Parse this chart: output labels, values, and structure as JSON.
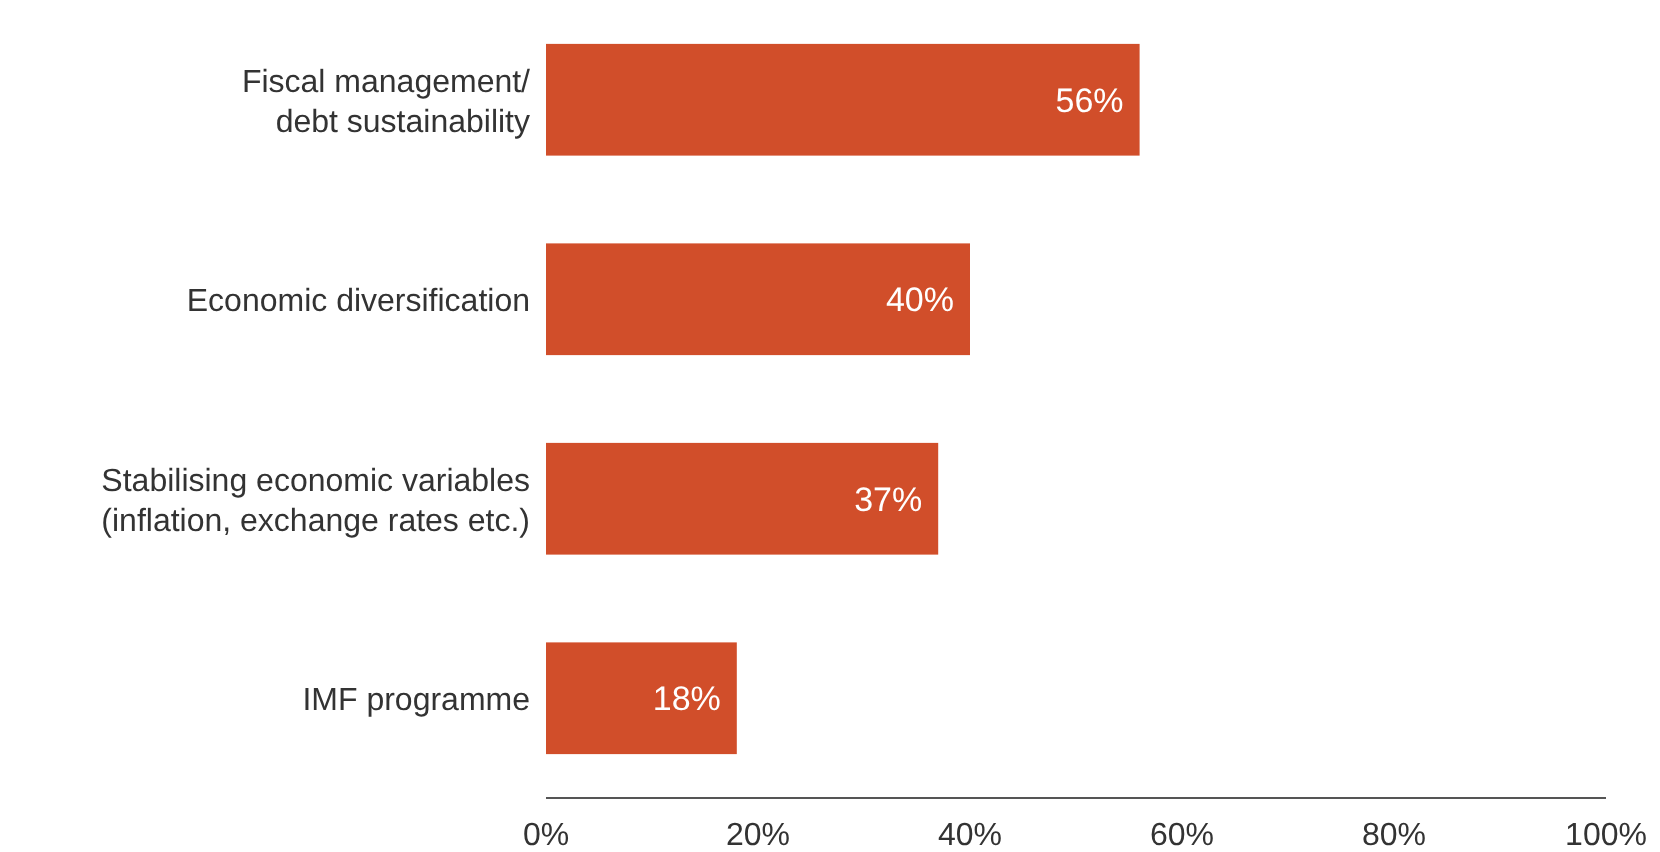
{
  "chart_data": {
    "type": "bar",
    "orientation": "horizontal",
    "categories": [
      "Fiscal management/\ndebt sustainability",
      "Economic diversification",
      "Stabilising economic variables\n(inflation, exchange rates etc.)",
      "IMF programme"
    ],
    "values": [
      56,
      40,
      37,
      18
    ],
    "value_labels": [
      "56%",
      "40%",
      "37%",
      "18%"
    ],
    "color": "#d14e2a",
    "xlim": [
      0,
      100
    ],
    "xticks": [
      {
        "value": 0,
        "label": "0%"
      },
      {
        "value": 20,
        "label": "20%"
      },
      {
        "value": 40,
        "label": "40%"
      },
      {
        "value": 60,
        "label": "60%"
      },
      {
        "value": 80,
        "label": "80%"
      },
      {
        "value": 100,
        "label": "100%"
      }
    ],
    "grid": false
  }
}
